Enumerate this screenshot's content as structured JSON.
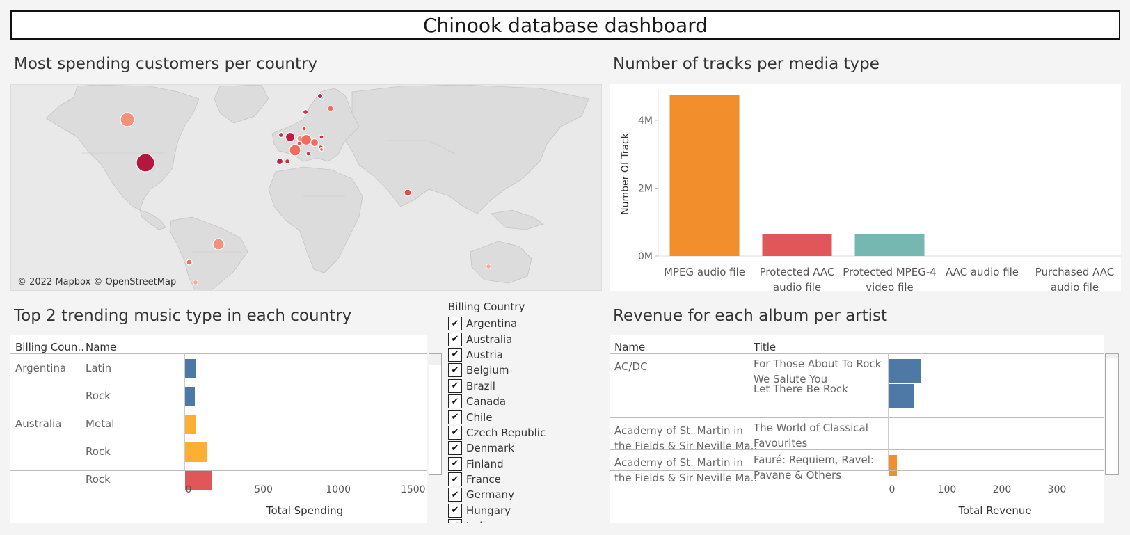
{
  "dashboard": {
    "title": "Chinook database dashboard"
  },
  "map": {
    "title": "Most spending customers per country",
    "credit": "© 2022 Mapbox © OpenStreetMap"
  },
  "tracks_chart": {
    "title": "Number of tracks per media type",
    "ylabel": "Number Of Track",
    "yticks": [
      "4M",
      "2M",
      "0M"
    ],
    "chart_data": {
      "type": "bar",
      "categories": [
        "MPEG audio file",
        "Protected AAC audio file",
        "Protected MPEG-4 video file",
        "AAC audio file",
        "Purchased AAC audio file"
      ],
      "category_lines": [
        [
          "MPEG audio file"
        ],
        [
          "Protected AAC",
          "audio file"
        ],
        [
          "Protected MPEG-4",
          "video file"
        ],
        [
          "AAC audio file"
        ],
        [
          "Purchased AAC",
          "audio file"
        ]
      ],
      "values": [
        4750000,
        650000,
        640000,
        0,
        0
      ],
      "colors": [
        "#f28e2b",
        "#e15759",
        "#76b7b2",
        "#cccccc",
        "#cccccc"
      ],
      "ylabel": "Number Of Track",
      "ylim": [
        0,
        4900000
      ]
    }
  },
  "genre_table": {
    "title": "Top 2 trending music type in each country",
    "col_country": "Billing Coun..",
    "col_name": "Name",
    "rows": [
      {
        "country": "Argentina",
        "name": "Latin",
        "value": 72,
        "color": "#4e79a7"
      },
      {
        "country": "",
        "name": "Rock",
        "value": 66,
        "color": "#4e79a7"
      },
      {
        "country": "Australia",
        "name": "Metal",
        "value": 68,
        "color": "#ffae34"
      },
      {
        "country": "",
        "name": "Rock",
        "value": 145,
        "color": "#ffae34"
      },
      {
        "country": "",
        "name": "Rock",
        "value": 175,
        "color": "#e15759"
      }
    ],
    "axis_ticks": [
      "0",
      "500",
      "1000",
      "1500"
    ],
    "axis_max": 1580,
    "axis_title": "Total Spending"
  },
  "filter": {
    "title": "Billing Country",
    "items": [
      "Argentina",
      "Australia",
      "Austria",
      "Belgium",
      "Brazil",
      "Canada",
      "Chile",
      "Czech Republic",
      "Denmark",
      "Finland",
      "France",
      "Germany",
      "Hungary",
      "India"
    ]
  },
  "album_table": {
    "title": "Revenue for each album per artist",
    "col_name": "Name",
    "col_title": "Title",
    "rows": [
      {
        "artist_lines": [
          "AC/DC"
        ],
        "title_lines": [
          "For Those About To Rock",
          "We Salute You"
        ],
        "value": 59,
        "color": "#4e79a7"
      },
      {
        "artist_lines": [
          ""
        ],
        "title_lines": [
          "Let There Be Rock"
        ],
        "value": 47,
        "color": "#4e79a7"
      },
      {
        "artist_lines": [
          "Academy of St. Martin in",
          "the Fields & Sir Neville Ma.."
        ],
        "title_lines": [
          "The World of Classical",
          "Favourites"
        ],
        "value": 0,
        "color": "#f28e2b"
      },
      {
        "artist_lines": [
          "Academy of St. Martin in",
          "the Fields & Sir Neville Ma.."
        ],
        "title_lines": [
          "Fauré: Requiem, Ravel:",
          "Pavane & Others"
        ],
        "value": 15,
        "color": "#f28e2b"
      }
    ],
    "axis_ticks": [
      "0",
      "100",
      "200",
      "300"
    ],
    "axis_max": 390,
    "axis_title": "Total Revenue"
  }
}
